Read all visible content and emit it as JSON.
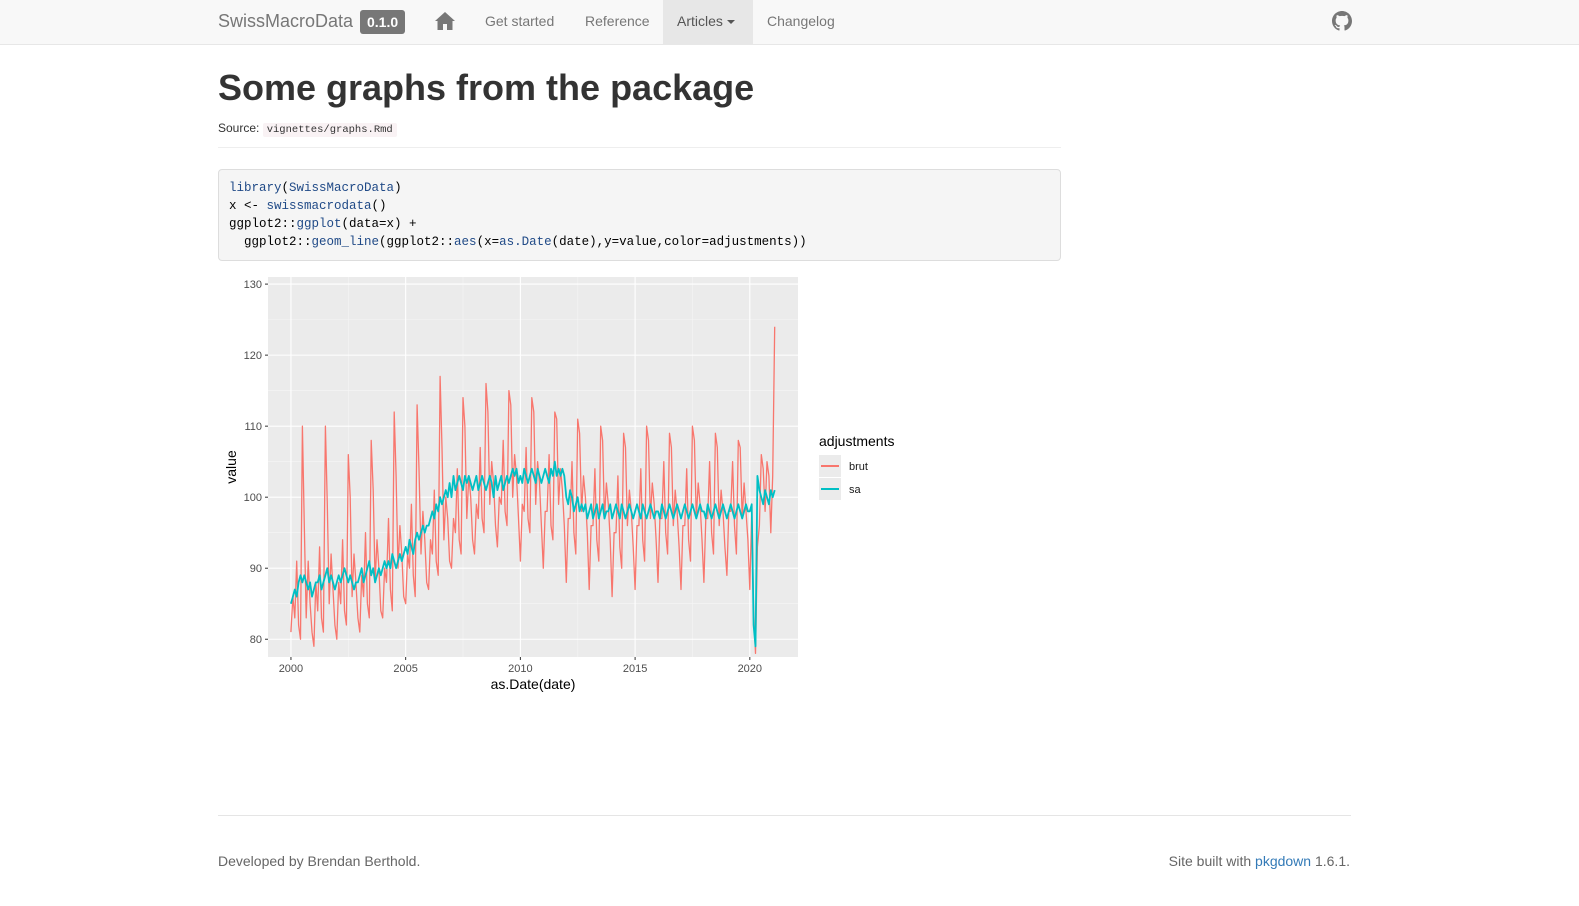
{
  "navbar": {
    "brand": "SwissMacroData",
    "version": "0.1.0",
    "links": {
      "get_started": "Get started",
      "reference": "Reference",
      "articles": "Articles",
      "changelog": "Changelog"
    },
    "icons": {
      "home": "home-icon",
      "github": "github-icon"
    }
  },
  "article": {
    "title": "Some graphs from the package",
    "source_label": "Source:",
    "source_path": "vignettes/graphs.Rmd"
  },
  "code": {
    "lines": [
      "library(SwissMacroData)",
      "x <- swissmacrodata()",
      "ggplot2::ggplot(data=x) +",
      "  ggplot2::geom_line(ggplot2::aes(x=as.Date(date),y=value,color=adjustments))"
    ]
  },
  "chart_data": {
    "type": "line",
    "title": "",
    "xlabel": "as.Date(date)",
    "ylabel": "value",
    "xlim": [
      1999,
      2022.1
    ],
    "ylim": [
      77.5,
      131
    ],
    "x_ticks": [
      2000,
      2005,
      2010,
      2015,
      2020
    ],
    "y_ticks": [
      80,
      90,
      100,
      110,
      120,
      130
    ],
    "x_tick_labels": [
      "2000",
      "2005",
      "2010",
      "2015",
      "2020"
    ],
    "y_tick_labels": [
      "80",
      "90",
      "100",
      "110",
      "120",
      "130"
    ],
    "grid": true,
    "legend": {
      "title": "adjustments",
      "position": "right"
    },
    "series": [
      {
        "name": "brut",
        "color": "#f8766d",
        "x_start": 2000.0,
        "x_step": 0.08333,
        "values": [
          81,
          86,
          83,
          91,
          82,
          80,
          110,
          96,
          83,
          91,
          85,
          81,
          79,
          88,
          84,
          93,
          83,
          81,
          110,
          99,
          85,
          92,
          87,
          82,
          80,
          88,
          85,
          94,
          84,
          82,
          106,
          100,
          86,
          92,
          88,
          83,
          81,
          89,
          86,
          95,
          85,
          83,
          108,
          101,
          88,
          94,
          90,
          84,
          83,
          90,
          88,
          97,
          87,
          84,
          112,
          103,
          90,
          96,
          92,
          86,
          85,
          92,
          90,
          99,
          89,
          86,
          113,
          104,
          92,
          98,
          94,
          88,
          87,
          94,
          92,
          101,
          91,
          89,
          117,
          107,
          94,
          100,
          97,
          91,
          90,
          97,
          95,
          104,
          94,
          92,
          114,
          110,
          97,
          103,
          100,
          94,
          92,
          99,
          97,
          107,
          97,
          95,
          116,
          112,
          99,
          105,
          102,
          96,
          93,
          100,
          99,
          108,
          98,
          96,
          115,
          113,
          100,
          106,
          103,
          97,
          91,
          99,
          98,
          107,
          97,
          95,
          114,
          112,
          99,
          105,
          102,
          96,
          90,
          98,
          98,
          106,
          96,
          94,
          112,
          111,
          99,
          104,
          101,
          96,
          88,
          97,
          97,
          105,
          95,
          92,
          111,
          109,
          98,
          103,
          100,
          95,
          87,
          96,
          96,
          104,
          94,
          91,
          110,
          108,
          97,
          102,
          99,
          94,
          86,
          95,
          95,
          103,
          93,
          90,
          109,
          107,
          96,
          101,
          98,
          93,
          87,
          96,
          96,
          104,
          94,
          91,
          110,
          108,
          97,
          102,
          99,
          94,
          88,
          97,
          97,
          105,
          95,
          92,
          109,
          107,
          96,
          101,
          98,
          93,
          87,
          96,
          96,
          104,
          94,
          91,
          110,
          108,
          97,
          102,
          99,
          94,
          88,
          97,
          97,
          105,
          95,
          92,
          109,
          107,
          96,
          101,
          98,
          93,
          89,
          98,
          98,
          105,
          96,
          92,
          108,
          107,
          97,
          102,
          98,
          94,
          87,
          98,
          84,
          78,
          93,
          96,
          106,
          104,
          98,
          105,
          103,
          95,
          103,
          124
        ]
      },
      {
        "name": "sa",
        "color": "#00bfc4",
        "x_start": 2000.0,
        "x_step": 0.08333,
        "values": [
          85,
          86,
          87,
          86,
          88,
          89,
          88,
          89,
          88,
          87,
          88,
          86,
          87,
          88,
          88,
          89,
          87,
          88,
          89,
          90,
          88,
          89,
          88,
          87,
          88,
          89,
          88,
          89,
          90,
          89,
          88,
          89,
          88,
          87,
          88,
          88,
          89,
          90,
          88,
          89,
          90,
          91,
          89,
          90,
          88,
          89,
          90,
          89,
          90,
          91,
          90,
          91,
          90,
          92,
          91,
          90,
          91,
          92,
          91,
          92,
          93,
          92,
          94,
          93,
          92,
          94,
          95,
          94,
          95,
          96,
          95,
          96,
          96,
          97,
          98,
          97,
          99,
          98,
          100,
          99,
          100,
          101,
          100,
          102,
          100,
          103,
          101,
          102,
          103,
          102,
          101,
          103,
          102,
          103,
          102,
          101,
          102,
          103,
          101,
          102,
          103,
          102,
          101,
          102,
          103,
          102,
          100,
          103,
          101,
          102,
          103,
          101,
          102,
          103,
          102,
          103,
          104,
          103,
          104,
          102,
          103,
          102,
          104,
          103,
          102,
          103,
          104,
          103,
          102,
          104,
          103,
          102,
          103,
          104,
          103,
          102,
          104,
          103,
          105,
          103,
          104,
          103,
          104,
          103,
          100,
          99,
          101,
          100,
          98,
          99,
          100,
          98,
          99,
          98,
          99,
          97,
          98,
          99,
          97,
          98,
          99,
          97,
          98,
          99,
          97,
          98,
          98,
          99,
          97,
          98,
          99,
          98,
          97,
          99,
          98,
          97,
          98,
          99,
          98,
          97,
          98,
          99,
          98,
          97,
          99,
          98,
          97,
          98,
          99,
          98,
          97,
          98,
          98,
          97,
          99,
          98,
          97,
          98,
          99,
          98,
          97,
          98,
          99,
          98,
          97,
          98,
          99,
          98,
          97,
          98,
          99,
          98,
          97,
          98,
          99,
          98,
          98,
          97,
          99,
          98,
          97,
          98,
          99,
          98,
          97,
          98,
          99,
          98,
          97,
          98,
          99,
          98,
          97,
          98,
          99,
          98,
          97,
          98,
          99,
          98,
          98,
          99,
          82,
          79,
          103,
          101,
          100,
          99,
          101,
          100,
          99,
          101,
          100,
          101
        ]
      }
    ]
  },
  "footer": {
    "developed_by": "Developed by Brendan Berthold.",
    "built_prefix": "Site built with",
    "built_link": "pkgdown",
    "built_suffix": "1.6.1."
  }
}
